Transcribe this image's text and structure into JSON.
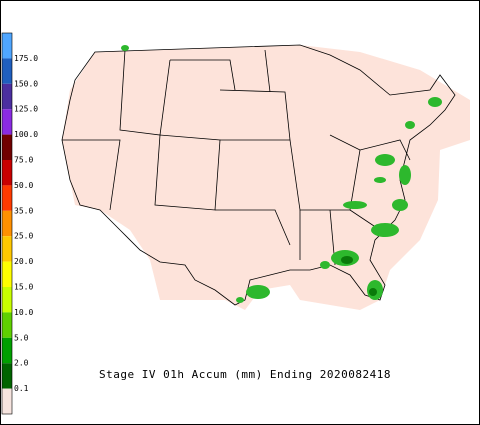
{
  "title": "Stage IV 01h Accum (mm) Ending 2020082418",
  "legend": {
    "labels": [
      "175.0",
      "150.0",
      "125.0",
      "100.0",
      "75.0",
      "50.0",
      "35.0",
      "25.0",
      "20.0",
      "15.0",
      "10.0",
      "5.0",
      "2.0",
      "0.1"
    ],
    "colors": [
      "#4fa6ff",
      "#1f5fbf",
      "#4b2fa0",
      "#8a2be2",
      "#700000",
      "#c80000",
      "#ff3a00",
      "#ff9000",
      "#ffc800",
      "#ffff00",
      "#c8ff00",
      "#5fd000",
      "#00a000",
      "#006400",
      "#f6e4df"
    ]
  }
}
